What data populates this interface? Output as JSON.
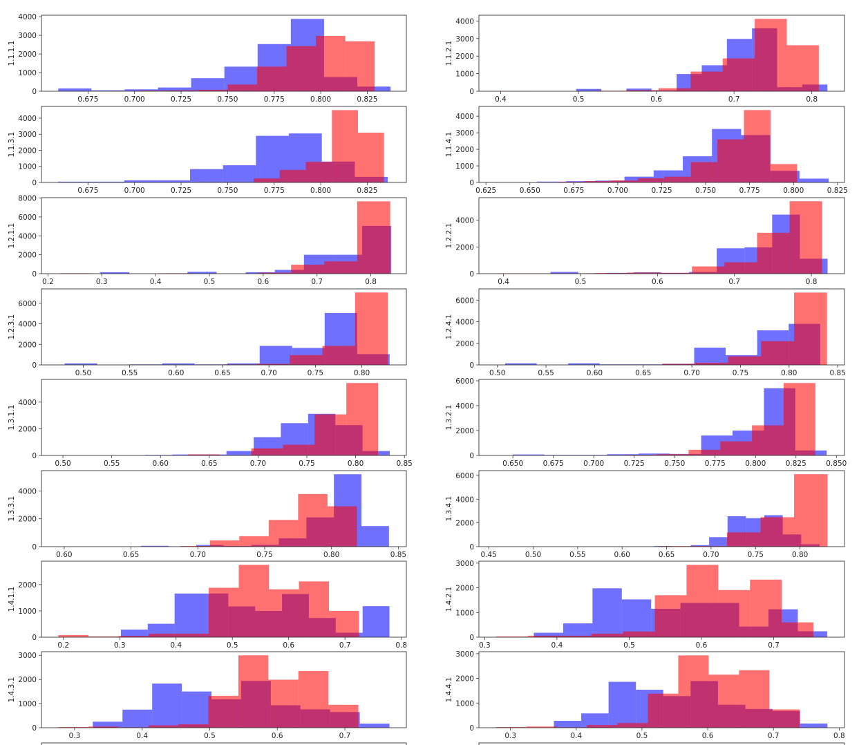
{
  "colors": {
    "series_a": "#0000ff",
    "series_b": "#ff0000"
  },
  "chart_data": [
    {
      "type": "histogram",
      "ylabel": "1.1.1.1",
      "xlim": [
        0.65,
        0.846
      ],
      "ylim": [
        0,
        4080
      ],
      "xticks": [
        "0.675",
        "0.700",
        "0.725",
        "0.750",
        "0.775",
        "0.800",
        "0.825"
      ],
      "yticks": [
        0,
        1000,
        2000,
        3000,
        4000
      ],
      "blue": {
        "range": [
          0.659,
          0.8375
        ],
        "counts": [
          150,
          50,
          100,
          200,
          700,
          1320,
          2530,
          3880,
          760,
          250
        ]
      },
      "red": {
        "range": [
          0.671,
          0.829
        ],
        "counts": [
          10,
          20,
          40,
          50,
          80,
          360,
          1320,
          2420,
          2970,
          2680
        ]
      }
    },
    {
      "type": "histogram",
      "ylabel": "1.1.2.1",
      "xlim": [
        0.372,
        0.842
      ],
      "ylim": [
        0,
        4330
      ],
      "xticks": [
        "0.4",
        "0.5",
        "0.6",
        "0.7",
        "0.8"
      ],
      "yticks": [
        0,
        1000,
        2000,
        3000,
        4000
      ],
      "blue": {
        "range": [
          0.497,
          0.82
        ],
        "counts": [
          130,
          10,
          150,
          50,
          980,
          1480,
          2980,
          3580,
          230,
          380
        ]
      },
      "red": {
        "range": [
          0.397,
          0.809
        ],
        "counts": [
          20,
          0,
          0,
          30,
          60,
          170,
          1120,
          1870,
          4120,
          2620
        ]
      }
    },
    {
      "type": "histogram",
      "ylabel": "1.1.3.1",
      "xlim": [
        0.65,
        0.846
      ],
      "ylim": [
        0,
        4730
      ],
      "xticks": [
        "0.675",
        "0.700",
        "0.725",
        "0.750",
        "0.775",
        "0.800",
        "0.825"
      ],
      "yticks": [
        0,
        1000,
        2000,
        3000,
        4000
      ],
      "blue": {
        "range": [
          0.659,
          0.836
        ],
        "counts": [
          50,
          50,
          130,
          130,
          830,
          1070,
          2900,
          3050,
          1300,
          350
        ]
      },
      "red": {
        "range": [
          0.694,
          0.834
        ],
        "counts": [
          0,
          0,
          0,
          20,
          20,
          250,
          780,
          1280,
          4500,
          3100
        ]
      }
    },
    {
      "type": "histogram",
      "ylabel": "1.1.4.1",
      "xlim": [
        0.621,
        0.829
      ],
      "ylim": [
        0,
        4590
      ],
      "xticks": [
        "0.625",
        "0.650",
        "0.675",
        "0.700",
        "0.725",
        "0.750",
        "0.775",
        "0.800",
        "0.825"
      ],
      "yticks": [
        0,
        1000,
        2000,
        3000,
        4000
      ],
      "blue": {
        "range": [
          0.654,
          0.82
        ],
        "counts": [
          50,
          80,
          110,
          350,
          730,
          1580,
          3230,
          2860,
          700,
          230
        ]
      },
      "red": {
        "range": [
          0.651,
          0.802
        ],
        "counts": [
          10,
          40,
          80,
          120,
          250,
          350,
          1230,
          2600,
          4370,
          1110
        ]
      }
    },
    {
      "type": "histogram",
      "ylabel": "1.2.1.1",
      "xlim": [
        0.188,
        0.866
      ],
      "ylim": [
        0,
        8040
      ],
      "xticks": [
        "0.2",
        "0.3",
        "0.4",
        "0.5",
        "0.6",
        "0.7",
        "0.8"
      ],
      "yticks": [
        0,
        2000,
        4000,
        6000,
        8000
      ],
      "blue": {
        "range": [
          0.297,
          0.838
        ],
        "counts": [
          150,
          0,
          0,
          200,
          0,
          150,
          400,
          2000,
          2000,
          5050
        ]
      },
      "red": {
        "range": [
          0.222,
          0.836
        ],
        "counts": [
          50,
          0,
          0,
          50,
          0,
          0,
          100,
          950,
          1300,
          7650
        ]
      }
    },
    {
      "type": "histogram",
      "ylabel": "1.2.2.1",
      "xlim": [
        0.368,
        0.843
      ],
      "ylim": [
        0,
        5690
      ],
      "xticks": [
        "0.4",
        "0.5",
        "0.6",
        "0.7",
        "0.8"
      ],
      "yticks": [
        0,
        2000,
        4000
      ],
      "blue": {
        "range": [
          0.461,
          0.821
        ],
        "counts": [
          130,
          30,
          60,
          100,
          60,
          130,
          1900,
          1970,
          4420,
          1120
        ]
      },
      "red": {
        "range": [
          0.391,
          0.814
        ],
        "counts": [
          30,
          30,
          30,
          50,
          80,
          60,
          540,
          850,
          3060,
          5420
        ]
      }
    },
    {
      "type": "histogram",
      "ylabel": "1.2.3.1",
      "xlim": [
        0.455,
        0.848
      ],
      "ylim": [
        0,
        7400
      ],
      "xticks": [
        "0.50",
        "0.55",
        "0.60",
        "0.65",
        "0.70",
        "0.75",
        "0.80"
      ],
      "yticks": [
        0,
        2000,
        4000,
        6000
      ],
      "blue": {
        "range": [
          0.48,
          0.83
        ],
        "counts": [
          150,
          0,
          50,
          150,
          50,
          150,
          1850,
          1650,
          5050,
          1050
        ]
      },
      "red": {
        "range": [
          0.476,
          0.828
        ],
        "counts": [
          0,
          0,
          0,
          0,
          0,
          50,
          100,
          950,
          1850,
          7050
        ]
      }
    },
    {
      "type": "histogram",
      "ylabel": "1.2.4.1",
      "xlim": [
        0.481,
        0.857
      ],
      "ylim": [
        0,
        7040
      ],
      "xticks": [
        "0.50",
        "0.55",
        "0.60",
        "0.65",
        "0.70",
        "0.75",
        "0.80",
        "0.85"
      ],
      "yticks": [
        0,
        2000,
        4000,
        6000
      ],
      "blue": {
        "range": [
          0.508,
          0.832
        ],
        "counts": [
          150,
          0,
          150,
          50,
          50,
          100,
          1600,
          900,
          3200,
          3800
        ]
      },
      "red": {
        "range": [
          0.5,
          0.839
        ],
        "counts": [
          0,
          0,
          0,
          0,
          0,
          100,
          200,
          800,
          2200,
          6700
        ]
      }
    },
    {
      "type": "histogram",
      "ylabel": "1.3.1.1",
      "xlim": [
        0.478,
        0.852
      ],
      "ylim": [
        0,
        5700
      ],
      "xticks": [
        "0.50",
        "0.55",
        "0.60",
        "0.65",
        "0.70",
        "0.75",
        "0.80",
        "0.85"
      ],
      "yticks": [
        0,
        2000,
        4000
      ],
      "blue": {
        "range": [
          0.556,
          0.835
        ],
        "counts": [
          5,
          40,
          70,
          70,
          330,
          1370,
          2420,
          3120,
          2270,
          330
        ]
      },
      "red": {
        "range": [
          0.498,
          0.823
        ],
        "counts": [
          0,
          0,
          0,
          0,
          80,
          10,
          530,
          800,
          3080,
          5430
        ]
      }
    },
    {
      "type": "histogram",
      "ylabel": "1.3.2.1",
      "xlim": [
        0.629,
        0.855
      ],
      "ylim": [
        0,
        6110
      ],
      "xticks": [
        "0.650",
        "0.675",
        "0.700",
        "0.725",
        "0.750",
        "0.775",
        "0.800",
        "0.825",
        "0.850"
      ],
      "yticks": [
        0,
        2000,
        4000,
        6000
      ],
      "blue": {
        "range": [
          0.65,
          0.844
        ],
        "counts": [
          80,
          40,
          40,
          100,
          150,
          120,
          1600,
          2000,
          5400,
          400
        ]
      },
      "red": {
        "range": [
          0.641,
          0.837
        ],
        "counts": [
          0,
          0,
          0,
          0,
          50,
          100,
          450,
          1130,
          2420,
          5820
        ]
      }
    },
    {
      "type": "histogram",
      "ylabel": "1.3.3.1",
      "xlim": [
        0.583,
        0.856
      ],
      "ylim": [
        0,
        5460
      ],
      "xticks": [
        "0.60",
        "0.65",
        "0.70",
        "0.75",
        "0.80",
        "0.85"
      ],
      "yticks": [
        0,
        2000,
        4000
      ],
      "blue": {
        "range": [
          0.637,
          0.843
        ],
        "counts": [
          5,
          60,
          20,
          120,
          50,
          130,
          600,
          2100,
          5200,
          1480
        ]
      },
      "red": {
        "range": [
          0.599,
          0.819
        ],
        "counts": [
          0,
          0,
          0,
          0,
          50,
          450,
          750,
          1920,
          3780,
          2900
        ]
      }
    },
    {
      "type": "histogram",
      "ylabel": "1.3.4.1",
      "xlim": [
        0.439,
        0.85
      ],
      "ylim": [
        0,
        6400
      ],
      "xticks": [
        "0.45",
        "0.50",
        "0.55",
        "0.60",
        "0.65",
        "0.70",
        "0.75",
        "0.80"
      ],
      "yticks": [
        0,
        2000,
        4000,
        6000
      ],
      "blue": {
        "range": [
          0.615,
          0.822
        ],
        "counts": [
          0,
          50,
          30,
          130,
          800,
          2560,
          2400,
          2650,
          1030,
          200
        ]
      },
      "red": {
        "range": [
          0.454,
          0.831
        ],
        "counts": [
          0,
          0,
          0,
          0,
          0,
          50,
          50,
          1200,
          2480,
          6100
        ]
      }
    },
    {
      "type": "histogram",
      "ylabel": "1.4.1.1",
      "xlim": [
        0.161,
        0.809
      ],
      "ylim": [
        0,
        2890
      ],
      "xticks": [
        "0.2",
        "0.3",
        "0.4",
        "0.5",
        "0.6",
        "0.7",
        "0.8"
      ],
      "yticks": [
        0,
        1000,
        2000
      ],
      "blue": {
        "range": [
          0.302,
          0.779
        ],
        "counts": [
          290,
          510,
          1660,
          1660,
          1170,
          1000,
          1640,
          730,
          170,
          1180
        ]
      },
      "red": {
        "range": [
          0.191,
          0.725
        ],
        "counts": [
          80,
          30,
          50,
          130,
          130,
          1880,
          2750,
          1820,
          2120,
          1000
        ]
      }
    },
    {
      "type": "histogram",
      "ylabel": "1.4.2.1",
      "xlim": [
        0.292,
        0.798
      ],
      "ylim": [
        0,
        3080
      ],
      "xticks": [
        "0.3",
        "0.4",
        "0.5",
        "0.6",
        "0.7"
      ],
      "yticks": [
        0,
        1000,
        2000,
        3000
      ],
      "blue": {
        "range": [
          0.368,
          0.774
        ],
        "counts": [
          180,
          560,
          1980,
          1530,
          1150,
          1390,
          1390,
          430,
          1130,
          240
        ]
      },
      "red": {
        "range": [
          0.316,
          0.755
        ],
        "counts": [
          30,
          60,
          60,
          140,
          230,
          1700,
          2930,
          1910,
          2330,
          600
        ]
      }
    },
    {
      "type": "histogram",
      "ylabel": "1.4.3.1",
      "xlim": [
        0.251,
        0.791
      ],
      "ylim": [
        0,
        3150
      ],
      "xticks": [
        "0.3",
        "0.4",
        "0.5",
        "0.6",
        "0.7"
      ],
      "yticks": [
        0,
        1000,
        2000,
        3000
      ],
      "blue": {
        "range": [
          0.327,
          0.766
        ],
        "counts": [
          250,
          750,
          1830,
          1500,
          1180,
          1940,
          930,
          760,
          650,
          170
        ]
      },
      "red": {
        "range": [
          0.276,
          0.72
        ],
        "counts": [
          30,
          50,
          20,
          100,
          140,
          1320,
          3000,
          1990,
          2350,
          950
        ]
      }
    },
    {
      "type": "histogram",
      "ylabel": "1.4.4.1",
      "xlim": [
        0.252,
        0.808
      ],
      "ylim": [
        0,
        3080
      ],
      "xticks": [
        "0.3",
        "0.4",
        "0.5",
        "0.6",
        "0.7",
        "0.8"
      ],
      "yticks": [
        0,
        1000,
        2000,
        3000
      ],
      "blue": {
        "range": [
          0.366,
          0.782
        ],
        "counts": [
          280,
          580,
          1860,
          1540,
          1280,
          1890,
          930,
          760,
          680,
          170
        ]
      },
      "red": {
        "range": [
          0.278,
          0.74
        ],
        "counts": [
          30,
          50,
          20,
          110,
          190,
          1380,
          2930,
          2150,
          2330,
          740
        ]
      }
    }
  ]
}
